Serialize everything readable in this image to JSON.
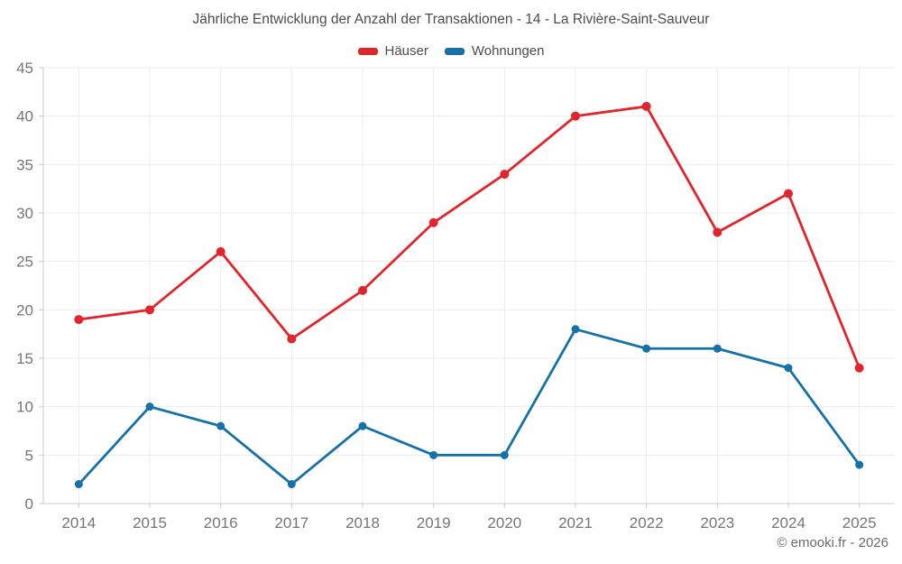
{
  "chart": {
    "title": "Jährliche Entwicklung der Anzahl der Transaktionen - 14 - La Rivière-Saint-Sauveur"
  },
  "footer": {
    "copyright": "© emooki.fr - 2026"
  },
  "colors": {
    "haeuser": "#e0252b",
    "wohnungen": "#1571a8",
    "gridline": "#ececec",
    "axis": "#c9cbcd",
    "tick_label": "#767676",
    "title_text": "#4c4c4c",
    "footer_text": "#6b6b6b"
  },
  "chart_data": {
    "type": "line",
    "title": "Jährliche Entwicklung der Anzahl der Transaktionen - 14 - La Rivière-Saint-Sauveur",
    "x": [
      "2014",
      "2015",
      "2016",
      "2017",
      "2018",
      "2019",
      "2020",
      "2021",
      "2022",
      "2023",
      "2024",
      "2025"
    ],
    "series": [
      {
        "name": "Häuser",
        "color": "#e0252b",
        "values": [
          19,
          20,
          26,
          17,
          22,
          29,
          34,
          40,
          41,
          28,
          32,
          14
        ]
      },
      {
        "name": "Wohnungen",
        "color": "#1571a8",
        "values": [
          2,
          10,
          8,
          2,
          8,
          5,
          5,
          18,
          16,
          16,
          14,
          4
        ]
      }
    ],
    "xlabel": "",
    "ylabel": "",
    "ylim": [
      0,
      45
    ],
    "y_ticks": [
      0,
      5,
      10,
      15,
      20,
      25,
      30,
      35,
      40,
      45
    ],
    "grid": true,
    "legend_position": "top"
  }
}
